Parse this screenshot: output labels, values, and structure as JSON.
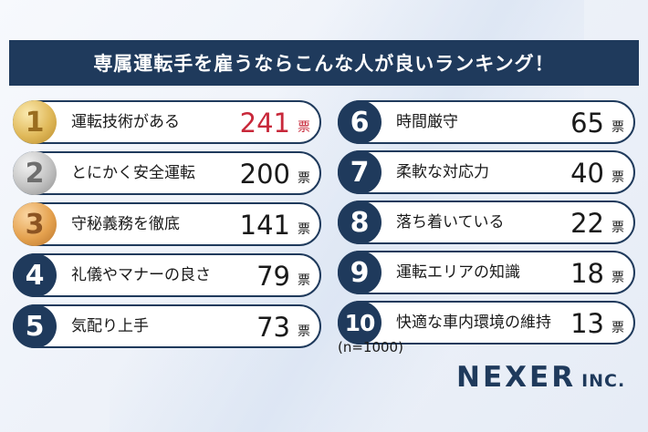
{
  "title": "専属運転手を雇うならこんな人が良いランキング！",
  "unit": "票",
  "sample_note": "(n=1000)",
  "logo": {
    "main": "NEXER",
    "sub": "INC."
  },
  "colors": {
    "navy": "#1f3a5c",
    "highlight": "#c8283a",
    "gold": "#e0b95a",
    "silver": "#c2c2c2",
    "bronze": "#e5a24f"
  },
  "chart_data": {
    "type": "table",
    "title": "専属運転手を雇うならこんな人が良いランキング！",
    "columns": [
      "rank",
      "item",
      "votes"
    ],
    "unit": "票",
    "rows": [
      {
        "rank": "1",
        "item": "運転技術がある",
        "votes": "241"
      },
      {
        "rank": "2",
        "item": "とにかく安全運転",
        "votes": "200"
      },
      {
        "rank": "3",
        "item": "守秘義務を徹底",
        "votes": "141"
      },
      {
        "rank": "4",
        "item": "礼儀やマナーの良さ",
        "votes": "79"
      },
      {
        "rank": "5",
        "item": "気配り上手",
        "votes": "73"
      },
      {
        "rank": "6",
        "item": "時間厳守",
        "votes": "65"
      },
      {
        "rank": "7",
        "item": "柔軟な対応力",
        "votes": "40"
      },
      {
        "rank": "8",
        "item": "落ち着いている",
        "votes": "22"
      },
      {
        "rank": "9",
        "item": "運転エリアの知識",
        "votes": "18"
      },
      {
        "rank": "10",
        "item": "快適な車内環境の維持",
        "votes": "13"
      }
    ],
    "note": "(n=1000)"
  }
}
